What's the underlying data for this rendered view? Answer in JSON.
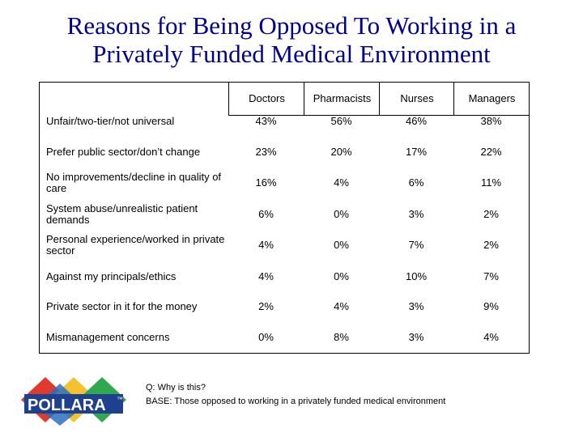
{
  "title": {
    "line1": "Reasons for Being Opposed To Working in a",
    "line2": "Privately Funded Medical Environment"
  },
  "table": {
    "columns": [
      "Doctors",
      "Pharmacists",
      "Nurses",
      "Managers"
    ],
    "rows": [
      {
        "label": "Unfair/two-tier/not universal",
        "values": [
          "43%",
          "56%",
          "46%",
          "38%"
        ]
      },
      {
        "label": "Prefer public sector/don’t change",
        "values": [
          "23%",
          "20%",
          "17%",
          "22%"
        ]
      },
      {
        "label": "No improvements/decline in quality of care",
        "values": [
          "16%",
          "4%",
          "6%",
          "11%"
        ]
      },
      {
        "label": "System abuse/unrealistic patient demands",
        "values": [
          "6%",
          "0%",
          "3%",
          "2%"
        ]
      },
      {
        "label": "Personal experience/worked in private sector",
        "values": [
          "4%",
          "0%",
          "7%",
          "2%"
        ]
      },
      {
        "label": "Against my principals/ethics",
        "values": [
          "4%",
          "0%",
          "10%",
          "7%"
        ]
      },
      {
        "label": "Private sector in it for the money",
        "values": [
          "2%",
          "4%",
          "3%",
          "9%"
        ]
      },
      {
        "label": "Mismanagement concerns",
        "values": [
          "0%",
          "8%",
          "3%",
          "4%"
        ]
      }
    ]
  },
  "footnote": {
    "question": "Q:   Why is this?",
    "base": "BASE: Those opposed to working in a privately funded medical environment"
  },
  "logo": {
    "text": "POLLARA",
    "tm": "™",
    "colors": [
      "#e03a2f",
      "#f2c230",
      "#2fa84f",
      "#2c6fbf"
    ]
  }
}
